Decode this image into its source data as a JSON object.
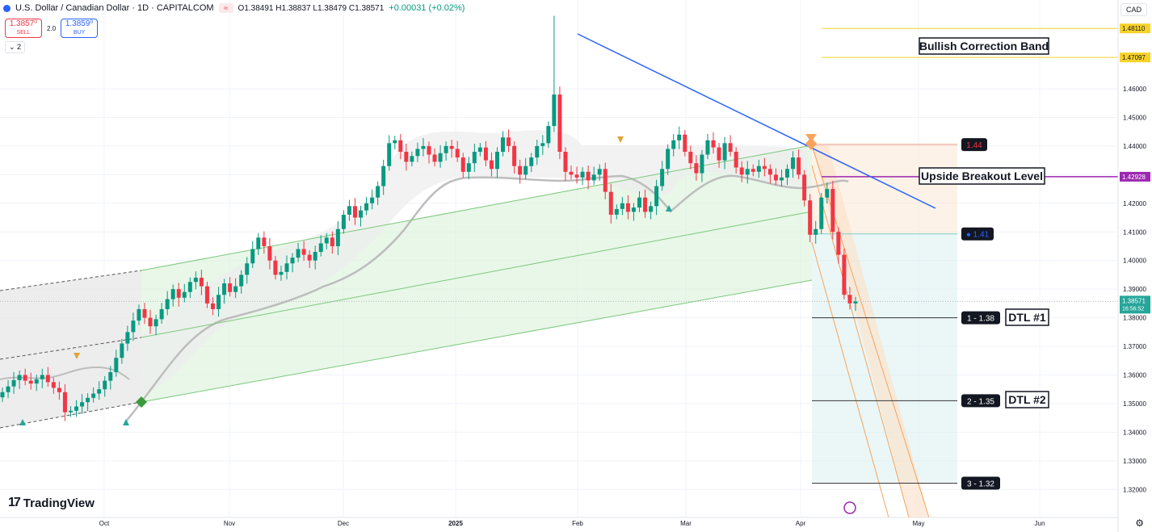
{
  "header": {
    "symbol": "U.S. Dollar / Canadian Dollar · 1D · CAPITALCOM",
    "ohlc": "O1.38491 H1.38837 L1.38479 C1.38571",
    "change": "+0.00031 (+0.02%)",
    "sell_price": "1.3857⁰",
    "sell_label": "SELL",
    "buy_price": "1.3859⁰",
    "buy_label": "BUY",
    "spread": "2.0",
    "layers": "2",
    "currency": "CAD"
  },
  "brand": "TradingView",
  "colors": {
    "up": "#089981",
    "down": "#f23645",
    "trend": "#2962ff",
    "channel": "#7bc87b",
    "band": "#f7d229",
    "breakout": "#9c27b0",
    "descending": "#f7a35c"
  },
  "chart_data": {
    "type": "candlestick",
    "x_ticks": [
      "Oct",
      "Nov",
      "Dec",
      "2025",
      "Feb",
      "Mar",
      "Apr",
      "May",
      "Jun"
    ],
    "y_ticks": [
      "1.46000",
      "1.45000",
      "1.44000",
      "1.43000",
      "1.42000",
      "1.41000",
      "1.40000",
      "1.39000",
      "1.38000",
      "1.37000",
      "1.36000",
      "1.35000",
      "1.34000",
      "1.33000",
      "1.32000"
    ],
    "ylim": [
      1.3115,
      1.4955
    ],
    "current_price": "1.38571",
    "countdown": "16:56:52",
    "levels": [
      {
        "label": "1.48110",
        "value": 1.4811
      },
      {
        "label": "1.47097",
        "value": 1.47097
      },
      {
        "label": "1.42928",
        "value": 1.42928
      },
      {
        "label": "1.44",
        "value": 1.4405
      },
      {
        "label": "1.41",
        "value": 1.4093
      },
      {
        "label": "1 - 1.38",
        "value": 1.38
      },
      {
        "label": "2 - 1.35",
        "value": 1.351
      },
      {
        "label": "3 - 1.32",
        "value": 1.3222
      }
    ],
    "annotations": [
      "Bullish Correction Band",
      "Upside Breakout Level",
      "DTL #1",
      "DTL #2"
    ],
    "closes": [
      1.354,
      1.356,
      1.3582,
      1.36,
      1.358,
      1.357,
      1.3585,
      1.36,
      1.3575,
      1.3555,
      1.354,
      1.347,
      1.3475,
      1.349,
      1.3505,
      1.352,
      1.3535,
      1.355,
      1.358,
      1.361,
      1.366,
      1.371,
      1.375,
      1.379,
      1.383,
      1.38,
      1.377,
      1.3795,
      1.383,
      1.3865,
      1.39,
      1.387,
      1.389,
      1.3925,
      1.394,
      1.391,
      1.385,
      1.383,
      1.388,
      1.392,
      1.389,
      1.391,
      1.395,
      1.399,
      1.404,
      1.408,
      1.405,
      1.4,
      1.395,
      1.396,
      1.399,
      1.401,
      1.404,
      1.402,
      1.4,
      1.403,
      1.406,
      1.408,
      1.405,
      1.411,
      1.416,
      1.419,
      1.415,
      1.4175,
      1.42,
      1.422,
      1.426,
      1.433,
      1.441,
      1.442,
      1.438,
      1.4345,
      1.4365,
      1.439,
      1.44,
      1.437,
      1.4345,
      1.4375,
      1.44,
      1.439,
      1.436,
      1.431,
      1.434,
      1.438,
      1.4395,
      1.435,
      1.432,
      1.438,
      1.443,
      1.44,
      1.433,
      1.43,
      1.433,
      1.436,
      1.44,
      1.441,
      1.447,
      1.458,
      1.438,
      1.431,
      1.43,
      1.429,
      1.431,
      1.428,
      1.43,
      1.432,
      1.424,
      1.416,
      1.418,
      1.42,
      1.417,
      1.4185,
      1.422,
      1.417,
      1.419,
      1.426,
      1.432,
      1.439,
      1.442,
      1.444,
      1.438,
      1.434,
      1.4305,
      1.437,
      1.442,
      1.4395,
      1.435,
      1.441,
      1.438,
      1.4325,
      1.43,
      1.432,
      1.431,
      1.433,
      1.432,
      1.43,
      1.428,
      1.429,
      1.432,
      1.436,
      1.43,
      1.421,
      1.409,
      1.411,
      1.422,
      1.425,
      1.41,
      1.402,
      1.388,
      1.385,
      1.3857
    ]
  }
}
